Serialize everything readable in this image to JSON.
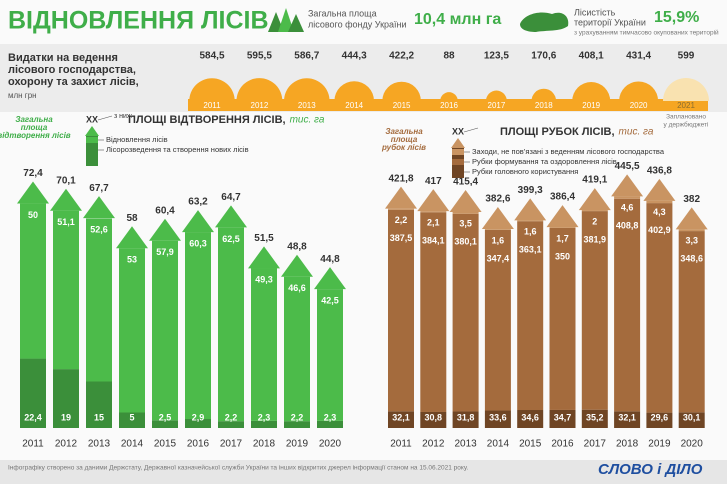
{
  "header": {
    "title": "ВІДНОВЛЕННЯ ЛІСІВ",
    "stat1": {
      "label": [
        "Загальна площа",
        "лісового фонду України"
      ],
      "value": "10,4 млн га"
    },
    "stat2": {
      "label": [
        "Лісистість",
        "території України"
      ],
      "value": "15,9%",
      "note": "з урахуванням тимчасово окупованих територій"
    }
  },
  "chart_data": [
    {
      "type": "bubble",
      "title": [
        "Видатки на ведення",
        "лісового господарства,",
        "охорону та захист лісів,"
      ],
      "unit": "млн грн",
      "categories": [
        "2011",
        "2012",
        "2013",
        "2014",
        "2015",
        "2016",
        "2017",
        "2018",
        "2019",
        "2020",
        "2021"
      ],
      "values": [
        584.5,
        595.5,
        586.7,
        444.3,
        422.2,
        88,
        123.5,
        170.6,
        408.1,
        431.4,
        599
      ],
      "value_labels": [
        "584,5",
        "595,5",
        "586,7",
        "444,3",
        "422,2",
        "88",
        "123,5",
        "170,6",
        "408,1",
        "431,4",
        "599"
      ],
      "colors": [
        "#f6a623",
        "#f6a623",
        "#f6a623",
        "#f6a623",
        "#f6a623",
        "#f6a623",
        "#f6a623",
        "#f6a623",
        "#f6a623",
        "#f6a623",
        "#f9e2b0"
      ],
      "note": [
        "Заплановано",
        "у держбюджеті"
      ]
    },
    {
      "type": "tree",
      "title": "ПЛОЩІ ВІДТВОРЕННЯ ЛІСІВ,",
      "unit": "тис. га",
      "total_label": [
        "Загальна",
        "площа",
        "відтворення лісів"
      ],
      "marker": "XX",
      "subset_label": "з них:",
      "categories": [
        "2011",
        "2012",
        "2013",
        "2014",
        "2015",
        "2016",
        "2017",
        "2018",
        "2019",
        "2020"
      ],
      "totals": [
        72.4,
        70.1,
        67.7,
        58,
        60.4,
        63.2,
        64.7,
        51.5,
        48.8,
        44.8
      ],
      "totals_labels": [
        "72,4",
        "70,1",
        "67,7",
        "58",
        "60,4",
        "63,2",
        "64,7",
        "51,5",
        "48,8",
        "44,8"
      ],
      "series": [
        {
          "name": "Відновлення лісів",
          "color": "#4cbb4a",
          "values": [
            50,
            51.1,
            52.6,
            53,
            57.9,
            60.3,
            62.5,
            49.3,
            46.6,
            42.5
          ],
          "value_labels": [
            "50",
            "51,1",
            "52,6",
            "53",
            "57,9",
            "60,3",
            "62,5",
            "49,3",
            "46,6",
            "42,5"
          ]
        },
        {
          "name": "Лісорозведення та створення нових лісів",
          "color": "#3b8f3a",
          "values": [
            22.4,
            19,
            15,
            5,
            2.5,
            2.9,
            2.2,
            2.3,
            2.2,
            2.3
          ],
          "value_labels": [
            "22,4",
            "19",
            "15",
            "5",
            "2,5",
            "2,9",
            "2,2",
            "2,3",
            "2,2",
            "2,3"
          ]
        }
      ]
    },
    {
      "type": "tree",
      "title": "ПЛОЩІ РУБОК ЛІСІВ,",
      "unit": "тис. га",
      "total_label": [
        "Загальна",
        "площа",
        "рубок лісів"
      ],
      "marker": "XX",
      "categories": [
        "2011",
        "2012",
        "2013",
        "2014",
        "2015",
        "2016",
        "2017",
        "2018",
        "2019",
        "2020"
      ],
      "totals": [
        421.8,
        417,
        415.4,
        382.6,
        399.3,
        386.4,
        419.1,
        445.5,
        436.8,
        382
      ],
      "totals_labels": [
        "421,8",
        "417",
        "415,4",
        "382,6",
        "399,3",
        "386,4",
        "419,1",
        "445,5",
        "436,8",
        "382"
      ],
      "series": [
        {
          "name": "Заходи, не пов’язані з веденням лісового господарства",
          "color": "#c99462",
          "values": [
            2.2,
            2.1,
            3.5,
            1.6,
            1.6,
            1.7,
            2,
            4.6,
            4.3,
            3.3
          ],
          "value_labels": [
            "2,2",
            "2,1",
            "3,5",
            "1,6",
            "1,6",
            "1,7",
            "2",
            "4,6",
            "4,3",
            "3,3"
          ]
        },
        {
          "name": "Рубки формування та оздоровлення лісів",
          "color": "#a46b3d",
          "values": [
            387.5,
            384.1,
            380.1,
            347.4,
            363.1,
            350,
            381.9,
            408.8,
            402.9,
            348.6
          ],
          "value_labels": [
            "387,5",
            "384,1",
            "380,1",
            "347,4",
            "363,1",
            "350",
            "381,9",
            "408,8",
            "402,9",
            "348,6"
          ]
        },
        {
          "name": "Рубки головного користування",
          "color": "#6f4524",
          "values": [
            32.1,
            30.8,
            31.8,
            33.6,
            34.6,
            34.7,
            35.2,
            32.1,
            29.6,
            30.1
          ],
          "value_labels": [
            "32,1",
            "30,8",
            "31,8",
            "33,6",
            "34,6",
            "34,7",
            "35,2",
            "32,1",
            "29,6",
            "30,1"
          ]
        }
      ]
    }
  ],
  "footer": {
    "source": "Інфографіку створено за даними Держстату, Державної казначейської служби України та інших відкритих джерел інформації станом на 15.06.2021 року.",
    "logo": "СЛОВО і ДІЛО"
  }
}
